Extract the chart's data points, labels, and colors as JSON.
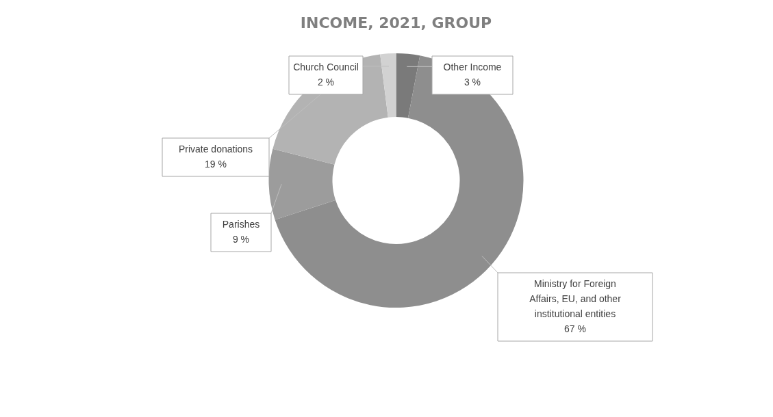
{
  "chart_data": {
    "type": "donut",
    "title": "INCOME, 2021, GROUP",
    "categories": [
      "Other Income",
      "Ministry for Foreign Affairs, EU, and other institutional entities",
      "Parishes",
      "Private donations",
      "Church Council"
    ],
    "values": [
      3,
      67,
      9,
      19,
      2
    ],
    "value_labels": [
      "3 %",
      "67 %",
      "9 %",
      "19 %",
      "2 %"
    ],
    "colors": [
      "#7a7a7a",
      "#8e8e8e",
      "#9c9c9c",
      "#b3b3b3",
      "#d2d2d2"
    ],
    "legend": false
  }
}
